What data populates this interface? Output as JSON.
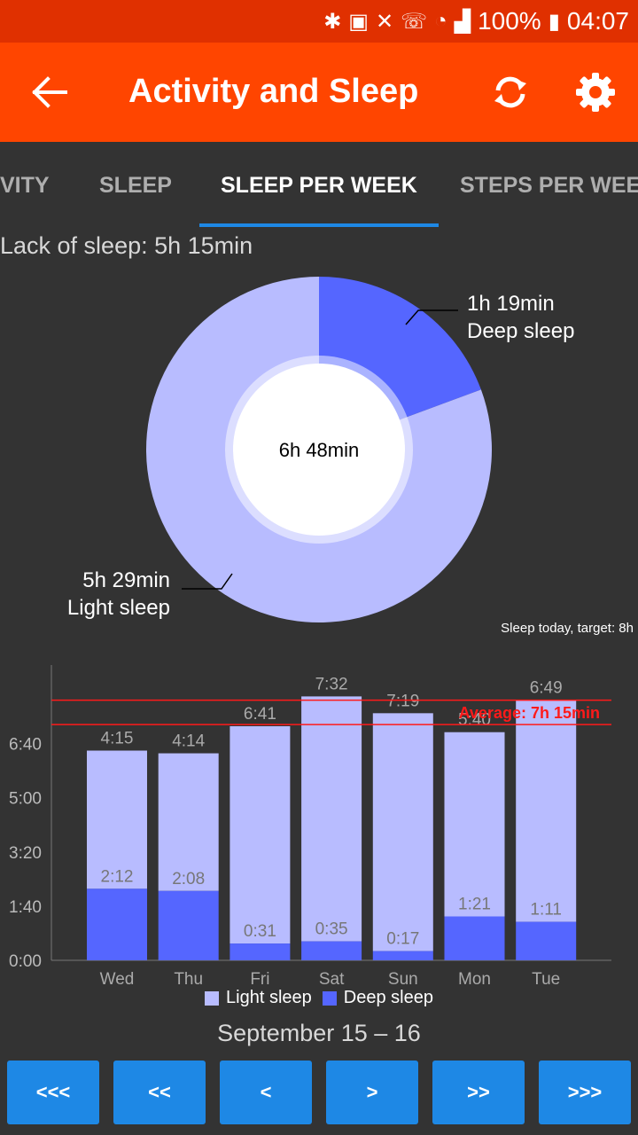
{
  "status_bar": {
    "battery": "100%",
    "time": "04:07",
    "icons": [
      "bluetooth-icon",
      "nfc-icon",
      "mute-icon",
      "wifi-calling-icon",
      "wifi-icon",
      "signal-icon",
      "battery-charging-icon"
    ]
  },
  "header": {
    "title": "Activity and Sleep",
    "back_icon": "arrow-back-icon",
    "sync_icon": "sync-icon",
    "settings_icon": "gear-icon",
    "color": "#ff4500"
  },
  "tabs": [
    {
      "label": "ACTIVITY",
      "visible_text": "VITY",
      "active": false
    },
    {
      "label": "SLEEP",
      "visible_text": "SLEEP",
      "active": false
    },
    {
      "label": "SLEEP PER WEEK",
      "visible_text": "SLEEP PER WEEK",
      "active": true
    },
    {
      "label": "STEPS PER WEEK",
      "visible_text": "STEPS PER WEEK",
      "active": false
    }
  ],
  "lack_of_sleep": "Lack of sleep: 5h 15min",
  "target_note": "Sleep today, target: 8h",
  "week_range": "September 15 – 16",
  "nav_buttons": [
    "<<<",
    "<<",
    "<",
    ">",
    ">>",
    ">>>"
  ],
  "chart_data": [
    {
      "type": "pie",
      "center_label": "6h 48min",
      "slices": [
        {
          "name": "Deep sleep",
          "value": 79,
          "label": "1h 19min",
          "color": "#5566ff"
        },
        {
          "name": "Light sleep",
          "value": 329,
          "label": "5h 29min",
          "color": "#b8bcff"
        }
      ]
    },
    {
      "type": "bar",
      "stacked": true,
      "categories": [
        "Wed",
        "Thu",
        "Fri",
        "Sat",
        "Sun",
        "Mon",
        "Tue"
      ],
      "series": [
        {
          "name": "Deep sleep",
          "color": "#5566ff",
          "values": [
            132,
            128,
            31,
            35,
            17,
            81,
            71
          ],
          "labels": [
            "2:12",
            "2:08",
            "0:31",
            "0:35",
            "0:17",
            "1:21",
            "1:11"
          ]
        },
        {
          "name": "Light sleep",
          "color": "#b8bcff",
          "values": [
            255,
            254,
            401,
            452,
            439,
            340,
            409
          ],
          "labels": [
            "4:15",
            "4:14",
            "6:41",
            "7:32",
            "7:19",
            "5:40",
            "6:49"
          ]
        }
      ],
      "y_ticks": [
        "0:00",
        "1:40",
        "3:20",
        "5:00",
        "6:40"
      ],
      "ylim": [
        0,
        540
      ],
      "target_line": 480,
      "average_line": 435,
      "average_label": "Average: 7h 15min",
      "line_color": "#ff1a1a",
      "legend": [
        "Light sleep",
        "Deep sleep"
      ],
      "legend_position": "bottom-center",
      "grid": false
    }
  ]
}
